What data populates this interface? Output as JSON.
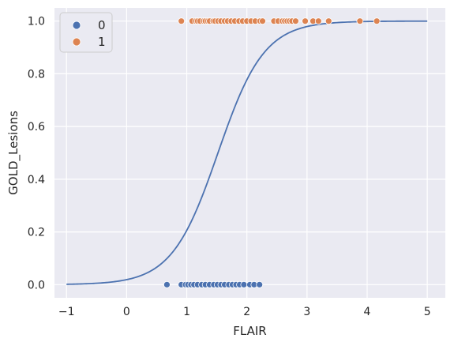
{
  "chart_data": {
    "type": "scatter",
    "title": "",
    "xlabel": "FLAIR",
    "ylabel": "GOLD_Lesions",
    "xlim": [
      -1.2,
      5.3
    ],
    "ylim": [
      -0.05,
      1.05
    ],
    "x_ticks": [
      -1,
      0,
      1,
      2,
      3,
      4,
      5
    ],
    "y_ticks": [
      0.0,
      0.2,
      0.4,
      0.6,
      0.8,
      1.0
    ],
    "x_tick_labels": [
      "−1",
      "0",
      "1",
      "2",
      "3",
      "4",
      "5"
    ],
    "y_tick_labels": [
      "0.0",
      "0.2",
      "0.4",
      "0.6",
      "0.8",
      "1.0"
    ],
    "grid": true,
    "legend_position": "top-left",
    "series": [
      {
        "name": "0",
        "color": "#4C72B0",
        "y": 0,
        "x": [
          0.67,
          0.91,
          0.98,
          1.02,
          1.07,
          1.12,
          1.18,
          1.25,
          1.31,
          1.38,
          1.45,
          1.51,
          1.57,
          1.63,
          1.7,
          1.76,
          1.82,
          1.88,
          1.95,
          2.05,
          2.12,
          2.21
        ]
      },
      {
        "name": "1",
        "color": "#DD8452",
        "y": 1,
        "x": [
          0.91,
          1.09,
          1.15,
          1.18,
          1.22,
          1.28,
          1.31,
          1.35,
          1.38,
          1.44,
          1.47,
          1.52,
          1.57,
          1.63,
          1.68,
          1.74,
          1.8,
          1.87,
          1.93,
          2.0,
          2.07,
          2.14,
          2.22,
          2.26,
          2.45,
          2.52,
          2.59,
          2.63,
          2.67,
          2.71,
          2.75,
          2.81,
          2.97,
          3.1,
          3.19,
          3.36,
          3.88,
          4.16
        ]
      }
    ],
    "curve": {
      "type": "logistic",
      "color": "#4C72B0",
      "intercept": -3.95,
      "slope": 2.6,
      "x_range": [
        -1,
        5
      ]
    }
  }
}
